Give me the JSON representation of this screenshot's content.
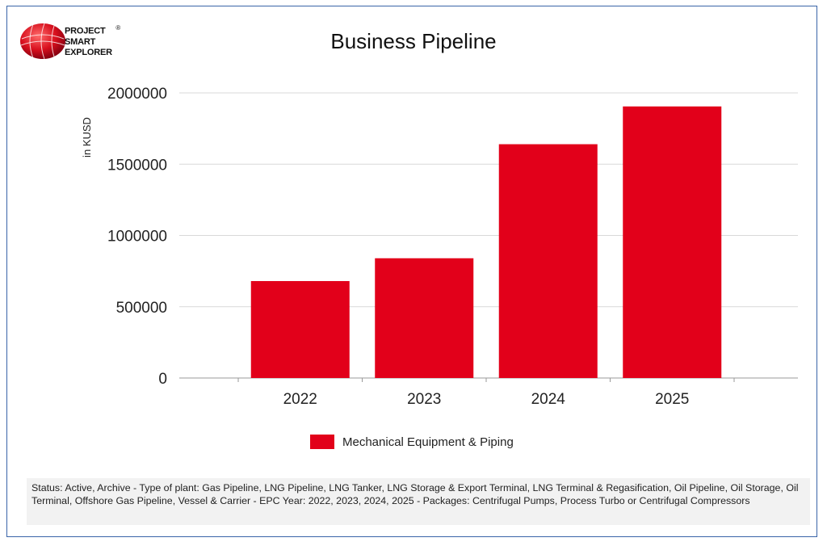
{
  "logo": {
    "line1": "PROJECT",
    "line2": "SMART",
    "line3": "EXPLORER",
    "mark": "®"
  },
  "chart_data": {
    "type": "bar",
    "title": "Business Pipeline",
    "ylabel": "in KUSD",
    "xlabel": "",
    "categories": [
      "2022",
      "2023",
      "2024",
      "2025"
    ],
    "series": [
      {
        "name": "Mechanical Equipment & Piping",
        "values": [
          680000,
          840000,
          1640000,
          1905000
        ]
      }
    ],
    "ylim": [
      0,
      2000000
    ],
    "yticks": [
      0,
      500000,
      1000000,
      1500000,
      2000000
    ],
    "ytick_labels": [
      "0",
      "500000",
      "1000000",
      "1500000",
      "2000000"
    ],
    "grid": true,
    "legend_position": "bottom",
    "bar_color": "#e2001a"
  },
  "footnote": "Status: Active, Archive - Type of plant: Gas Pipeline, LNG Pipeline, LNG Tanker, LNG Storage & Export Terminal, LNG Terminal & Regasification, Oil Pipeline, Oil Storage, Oil Terminal, Offshore Gas Pipeline, Vessel & Carrier - EPC Year: 2022, 2023, 2024, 2025 - Packages: Centrifugal Pumps, Process Turbo or Centrifugal Compressors"
}
